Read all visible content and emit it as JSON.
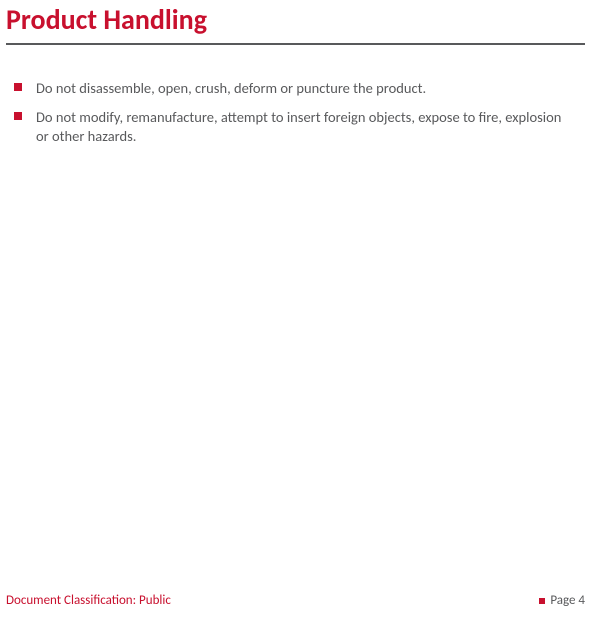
{
  "colors": {
    "accent": "#c8102e",
    "text": "#58595b",
    "divider": "#58595b"
  },
  "title": "Product Handling",
  "bullets": [
    "Do not disassemble, open, crush, deform or puncture the product.",
    "Do not modify, remanufacture, attempt to insert foreign objects, expose to fire, explosion or other hazards."
  ],
  "footer": {
    "classification": "Document Classification: Public",
    "page_label": "Page 4"
  }
}
